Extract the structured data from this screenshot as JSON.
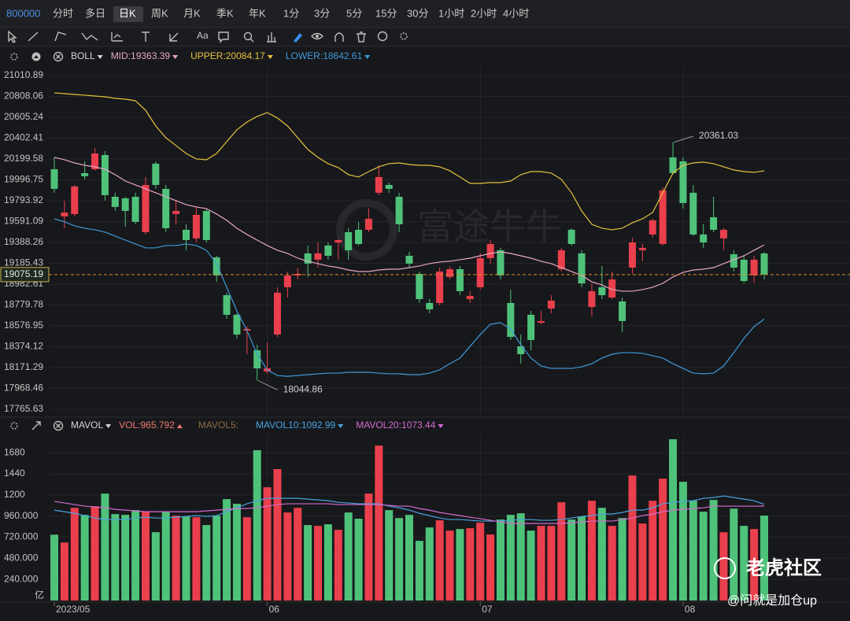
{
  "toolbar": {
    "symbol": "800000",
    "periods": [
      "分时",
      "多日",
      "日K",
      "周K",
      "月K",
      "季K",
      "年K",
      "1分",
      "3分",
      "5分",
      "15分",
      "30分",
      "1小时",
      "2小时",
      "4小时"
    ],
    "active_period": 2,
    "tool_text": "Aa"
  },
  "watermark": "富途牛牛",
  "credit": {
    "brand": "老虎社区",
    "author": "@问就是加仓up"
  },
  "chart_data": [
    {
      "type": "candlestick",
      "indicator": "BOLL",
      "up_color": "#ea3f4c",
      "down_color": "#4fc27a",
      "open": [
        20100,
        19641,
        19664,
        20062,
        20100,
        20238,
        19832,
        19817,
        19832,
        19488,
        20154,
        19909,
        19664,
        19511,
        19427,
        19694,
        19243,
        18875,
        18684,
        18531,
        18339,
        18133,
        18492,
        18952,
        19067,
        19281,
        19220,
        19358,
        19388,
        19488,
        19511,
        19511,
        19871,
        19947,
        19832,
        19258,
        19082,
        18799,
        18799,
        19052,
        19128,
        18837,
        18952,
        19235,
        19312,
        18799,
        18378,
        18684,
        18607,
        18745,
        19128,
        19511,
        19281,
        18760,
        18952,
        18852,
        18814,
        19143,
        19312,
        19465,
        19373,
        20215,
        20177,
        19871,
        19465,
        19633,
        19427,
        19273,
        19220,
        19067,
        19281
      ],
      "high": [
        20215,
        19794,
        19947,
        20177,
        20307,
        20276,
        19871,
        19832,
        19871,
        20024,
        20177,
        19947,
        19794,
        19564,
        19741,
        19717,
        19258,
        18899,
        18699,
        18569,
        18393,
        18416,
        18952,
        19105,
        19143,
        19358,
        19388,
        19388,
        19420,
        19526,
        19588,
        19717,
        20138,
        19970,
        19871,
        19296,
        19105,
        18837,
        19143,
        19159,
        19159,
        18914,
        19281,
        19411,
        19335,
        18929,
        18492,
        18722,
        18722,
        18875,
        19335,
        19526,
        19312,
        18990,
        19159,
        19105,
        18852,
        19435,
        19373,
        19618,
        19924,
        20361.03,
        20215,
        19947,
        19564,
        19832,
        19526,
        19312,
        19258,
        19258,
        19296
      ],
      "low": [
        19871,
        19526,
        19641,
        20001,
        20085,
        19794,
        19694,
        19541,
        19564,
        19465,
        19909,
        19488,
        19564,
        19312,
        19388,
        19388,
        19005,
        18646,
        18454,
        18301,
        18044.86,
        18110,
        18469,
        18852,
        19028,
        19052,
        19143,
        19220,
        19220,
        19220,
        19358,
        19488,
        19848,
        19871,
        19488,
        19143,
        18799,
        18699,
        18776,
        19028,
        18875,
        18799,
        18929,
        19182,
        19028,
        18439,
        18209,
        18339,
        18592,
        18699,
        19105,
        19358,
        18952,
        18669,
        18837,
        18837,
        18516,
        19082,
        19205,
        19435,
        19358,
        20047,
        19717,
        19450,
        19335,
        19488,
        19312,
        19105,
        18990,
        18990,
        19028
      ],
      "close": [
        19909,
        19679,
        19932,
        20032,
        20253,
        19848,
        19733,
        19694,
        19588,
        19947,
        19947,
        19526,
        19694,
        19411,
        19656,
        19411,
        19067,
        18684,
        18492,
        18546,
        18163,
        18163,
        18899,
        19067,
        19082,
        19182,
        19281,
        19258,
        19411,
        19312,
        19373,
        19618,
        20024,
        19909,
        19564,
        19182,
        18837,
        18737,
        19105,
        19128,
        18914,
        18867,
        19235,
        19373,
        19067,
        18469,
        18301,
        18439,
        18623,
        18822,
        19312,
        19373,
        18990,
        18914,
        18875,
        19028,
        18623,
        19388,
        19335,
        19603,
        19894,
        20062,
        19771,
        19465,
        19388,
        19511,
        19511,
        19143,
        19013,
        19220,
        19075.19
      ],
      "series": [
        {
          "name": "MID:",
          "color": "#e8a6c4",
          "values": [
            20215,
            20192,
            20161,
            20138,
            20123,
            20100,
            20047,
            19985,
            19947,
            19909,
            19871,
            19832,
            19794,
            19756,
            19733,
            19717,
            19664,
            19603,
            19526,
            19465,
            19411,
            19358,
            19312,
            19281,
            19235,
            19205,
            19182,
            19159,
            19143,
            19120,
            19105,
            19105,
            19120,
            19128,
            19128,
            19143,
            19159,
            19182,
            19197,
            19205,
            19220,
            19235,
            19258,
            19281,
            19296,
            19281,
            19258,
            19235,
            19205,
            19182,
            19143,
            19105,
            19067,
            19005,
            18975,
            18929,
            18914,
            18914,
            18929,
            18952,
            18990,
            19052,
            19097,
            19120,
            19128,
            19143,
            19182,
            19220,
            19258,
            19312,
            19363.39
          ]
        },
        {
          "name": "UPPER:",
          "color": "#e6c23f",
          "values": [
            20843,
            20835,
            20827,
            20820,
            20812,
            20804,
            20789,
            20781,
            20766,
            20674,
            20521,
            20406,
            20330,
            20253,
            20200,
            20192,
            20253,
            20368,
            20483,
            20559,
            20613,
            20651,
            20598,
            20521,
            20406,
            20292,
            20215,
            20154,
            20116,
            20047,
            20024,
            20077,
            20123,
            20154,
            20161,
            20146,
            20138,
            20138,
            20123,
            20085,
            20024,
            19962,
            19962,
            19970,
            19970,
            19985,
            20047,
            20077,
            20077,
            20062,
            20001,
            19871,
            19694,
            19564,
            19526,
            19511,
            19526,
            19580,
            19618,
            19679,
            19871,
            20062,
            20138,
            20161,
            20169,
            20154,
            20123,
            20093,
            20077,
            20070,
            20084.17
          ]
        },
        {
          "name": "LOWER:",
          "color": "#3f9ad9",
          "values": [
            19618,
            19588,
            19549,
            19526,
            19511,
            19488,
            19450,
            19411,
            19373,
            19335,
            19335,
            19358,
            19358,
            19373,
            19358,
            19312,
            19182,
            18952,
            18722,
            18531,
            18301,
            18148,
            18094,
            18086,
            18094,
            18102,
            18110,
            18117,
            18117,
            18125,
            18125,
            18125,
            18117,
            18110,
            18110,
            18102,
            18102,
            18117,
            18148,
            18209,
            18263,
            18378,
            18492,
            18592,
            18607,
            18546,
            18393,
            18263,
            18186,
            18163,
            18163,
            18163,
            18178,
            18209,
            18263,
            18301,
            18316,
            18316,
            18309,
            18286,
            18263,
            18209,
            18163,
            18117,
            18110,
            18117,
            18186,
            18316,
            18454,
            18569,
            18642.61
          ]
        }
      ],
      "ylim": [
        17704,
        21095
      ],
      "yticks": [
        21010.89,
        20808.06,
        20605.24,
        20402.41,
        20199.58,
        19996.75,
        19793.92,
        19591.09,
        19388.26,
        19185.43,
        18982.61,
        18779.78,
        18576.95,
        18374.12,
        18171.29,
        17968.46,
        17765.63
      ],
      "grid": true
    },
    {
      "type": "bar",
      "indicator": "MAVOL",
      "bar_name": "VOL:",
      "bar_name_color": "#f07a72",
      "mavol5_label": "MAVOL5:",
      "mavol5_color": "#8c6a45",
      "unit": "亿",
      "categories": [
        "2023/05",
        null,
        null,
        null,
        null,
        null,
        null,
        null,
        null,
        null,
        null,
        null,
        null,
        null,
        null,
        null,
        null,
        null,
        null,
        null,
        null,
        "06",
        null,
        null,
        null,
        null,
        null,
        null,
        null,
        null,
        null,
        null,
        null,
        null,
        null,
        null,
        null,
        null,
        null,
        null,
        null,
        null,
        "07",
        null,
        null,
        null,
        null,
        null,
        null,
        null,
        null,
        null,
        null,
        null,
        null,
        null,
        null,
        null,
        null,
        null,
        null,
        null,
        "08",
        null,
        null,
        null,
        null,
        null,
        null,
        null,
        null
      ],
      "values": [
        749,
        660,
        1054,
        974,
        1072,
        1216,
        983,
        974,
        1028,
        1010,
        777,
        1010,
        965,
        956,
        947,
        858,
        965,
        1153,
        1100,
        947,
        1709,
        1288,
        1494,
        1001,
        1054,
        858,
        849,
        867,
        804,
        1001,
        930,
        1216,
        1762,
        1028,
        938,
        974,
        679,
        831,
        912,
        795,
        813,
        822,
        885,
        751,
        921,
        974,
        992,
        795,
        849,
        849,
        1117,
        921,
        956,
        1135,
        1054,
        849,
        938,
        1422,
        876,
        1135,
        1386,
        1834,
        1350,
        1135,
        1010,
        1144,
        777,
        1045,
        849,
        813,
        965.792
      ],
      "series": [
        {
          "name": "MAVOL10:",
          "color": "#4aa3e0",
          "values": [
            1028,
            1010,
            992,
            965,
            938,
            921,
            921,
            921,
            938,
            947,
            938,
            938,
            947,
            956,
            965,
            956,
            965,
            1010,
            1054,
            1100,
            1135,
            1162,
            1162,
            1162,
            1162,
            1153,
            1144,
            1135,
            1117,
            1109,
            1100,
            1100,
            1100,
            1073,
            1054,
            1028,
            992,
            965,
            938,
            921,
            921,
            912,
            903,
            903,
            903,
            912,
            921,
            921,
            912,
            912,
            921,
            938,
            956,
            965,
            983,
            983,
            1001,
            1028,
            1028,
            1054,
            1100,
            1117,
            1127,
            1135,
            1162,
            1171,
            1189,
            1171,
            1153,
            1135,
            1092.99
          ]
        },
        {
          "name": "MAVOL20:",
          "color": "#d46ad0",
          "values": [
            1127,
            1109,
            1091,
            1073,
            1064,
            1054,
            1037,
            1028,
            1019,
            1010,
            1010,
            1010,
            1010,
            1010,
            1010,
            1019,
            1028,
            1037,
            1046,
            1046,
            1054,
            1073,
            1091,
            1100,
            1100,
            1100,
            1100,
            1100,
            1091,
            1091,
            1091,
            1091,
            1091,
            1082,
            1073,
            1073,
            1046,
            1028,
            1001,
            983,
            965,
            947,
            930,
            912,
            894,
            876,
            876,
            876,
            876,
            876,
            876,
            885,
            894,
            903,
            903,
            903,
            921,
            938,
            965,
            983,
            1010,
            1028,
            1037,
            1046,
            1054,
            1073,
            1073,
            1073,
            1073,
            1073,
            1073.44
          ]
        }
      ],
      "ylim": [
        0,
        1888
      ],
      "yticks": [
        1680,
        1440,
        1200,
        {
          "value": 960,
          "label": "960.000"
        },
        {
          "value": 720,
          "label": "720.000"
        },
        {
          "value": 480,
          "label": "480.000"
        },
        {
          "value": 240,
          "label": "240.000"
        }
      ],
      "grid": true
    }
  ]
}
